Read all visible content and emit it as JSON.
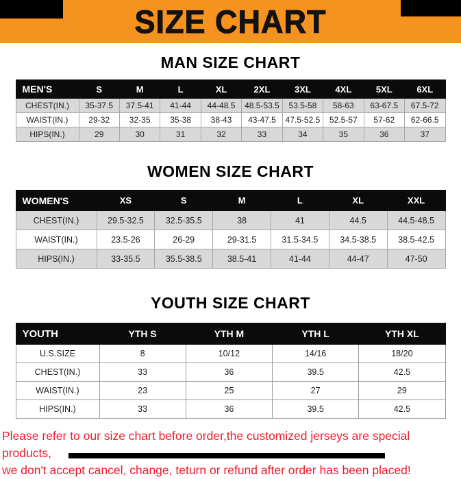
{
  "banner": {
    "title": "SIZE CHART"
  },
  "colors": {
    "banner_bg": "#F6921E",
    "header_bg": "#0b0b0b",
    "row_alt_bg": "#d8d8d8",
    "footer_text": "#EC1C2D"
  },
  "sections": [
    {
      "heading": "MAN SIZE CHART",
      "table": {
        "name": "mens",
        "columns": [
          "MEN'S",
          "S",
          "M",
          "L",
          "XL",
          "2XL",
          "3XL",
          "4XL",
          "5XL",
          "6XL"
        ],
        "rows": [
          [
            "CHEST(IN.)",
            "35-37.5",
            "37.5-41",
            "41-44",
            "44-48.5",
            "48.5-53.5",
            "53.5-58",
            "58-63",
            "63-67.5",
            "67.5-72"
          ],
          [
            "WAIST(IN.)",
            "29-32",
            "32-35",
            "35-38",
            "38-43",
            "43-47.5",
            "47.5-52.5",
            "52.5-57",
            "57-62",
            "62-66.5"
          ],
          [
            "HIPS(IN.)",
            "29",
            "30",
            "31",
            "32",
            "33",
            "34",
            "35",
            "36",
            "37"
          ]
        ]
      }
    },
    {
      "heading": "WOMEN SIZE CHART",
      "table": {
        "name": "womens",
        "columns": [
          "WOMEN'S",
          "XS",
          "S",
          "M",
          "L",
          "XL",
          "XXL"
        ],
        "rows": [
          [
            "CHEST(IN.)",
            "29.5-32.5",
            "32.5-35.5",
            "38",
            "41",
            "44.5",
            "44.5-48.5"
          ],
          [
            "WAIST(IN.)",
            "23.5-26",
            "26-29",
            "29-31.5",
            "31.5-34.5",
            "34.5-38.5",
            "38.5-42.5"
          ],
          [
            "HIPS(IN.)",
            "33-35.5",
            "35.5-38.5",
            "38.5-41",
            "41-44",
            "44-47",
            "47-50"
          ]
        ]
      }
    },
    {
      "heading": "YOUTH SIZE CHART",
      "table": {
        "name": "youth",
        "columns": [
          "YOUTH",
          "YTH S",
          "YTH M",
          "YTH L",
          "YTH XL"
        ],
        "rows": [
          [
            "U.S.SIZE",
            "8",
            "10/12",
            "14/16",
            "18/20"
          ],
          [
            "CHEST(IN.)",
            "33",
            "36",
            "39.5",
            "42.5"
          ],
          [
            "WAIST(IN.)",
            "23",
            "25",
            "27",
            "29"
          ],
          [
            "HIPS(IN.)",
            "33",
            "36",
            "39.5",
            "42.5"
          ]
        ]
      }
    }
  ],
  "footer": {
    "line1": "Please refer to our size chart before order,the customized jerseys are special products,",
    "line2": "we don't accept cancel, change, teturn or refund after order has been placed!"
  }
}
